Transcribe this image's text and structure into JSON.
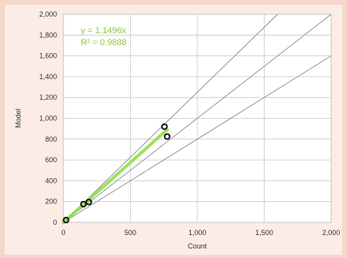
{
  "chart_data": {
    "type": "scatter",
    "title": "",
    "xlabel": "Count",
    "ylabel": "Model",
    "xlim": [
      0,
      2000
    ],
    "ylim": [
      0,
      2000
    ],
    "x_ticks": [
      "0",
      "500",
      "1,000",
      "1,500",
      "2,000"
    ],
    "x_tick_values": [
      0,
      500,
      1000,
      1500,
      2000
    ],
    "y_ticks": [
      "0",
      "200",
      "400",
      "600",
      "800",
      "1,000",
      "1,200",
      "1,400",
      "1,600",
      "1,800",
      "2,000"
    ],
    "y_tick_values": [
      0,
      200,
      400,
      600,
      800,
      1000,
      1200,
      1400,
      1600,
      1800,
      2000
    ],
    "grid": true,
    "points": [
      {
        "x": 20,
        "y": 22
      },
      {
        "x": 150,
        "y": 175
      },
      {
        "x": 190,
        "y": 195
      },
      {
        "x": 755,
        "y": 920
      },
      {
        "x": 775,
        "y": 825
      }
    ],
    "trendline": {
      "slope": 1.1496,
      "x_end": 775
    },
    "reference_lines": [
      {
        "slope": 0.8
      },
      {
        "slope": 1.0
      },
      {
        "slope": 1.25
      }
    ],
    "annotations": {
      "equation": "y = 1.1496x",
      "r_squared": "R² = 0.9888"
    },
    "colors": {
      "background": "#f6d6c8",
      "plot_area": "#ffffff",
      "grid": "#c8c8c8",
      "reference": "#8c8c8c",
      "trendline": "#8fe04a",
      "marker": "#1a1a1a",
      "annotation": "#8fc84a"
    }
  }
}
